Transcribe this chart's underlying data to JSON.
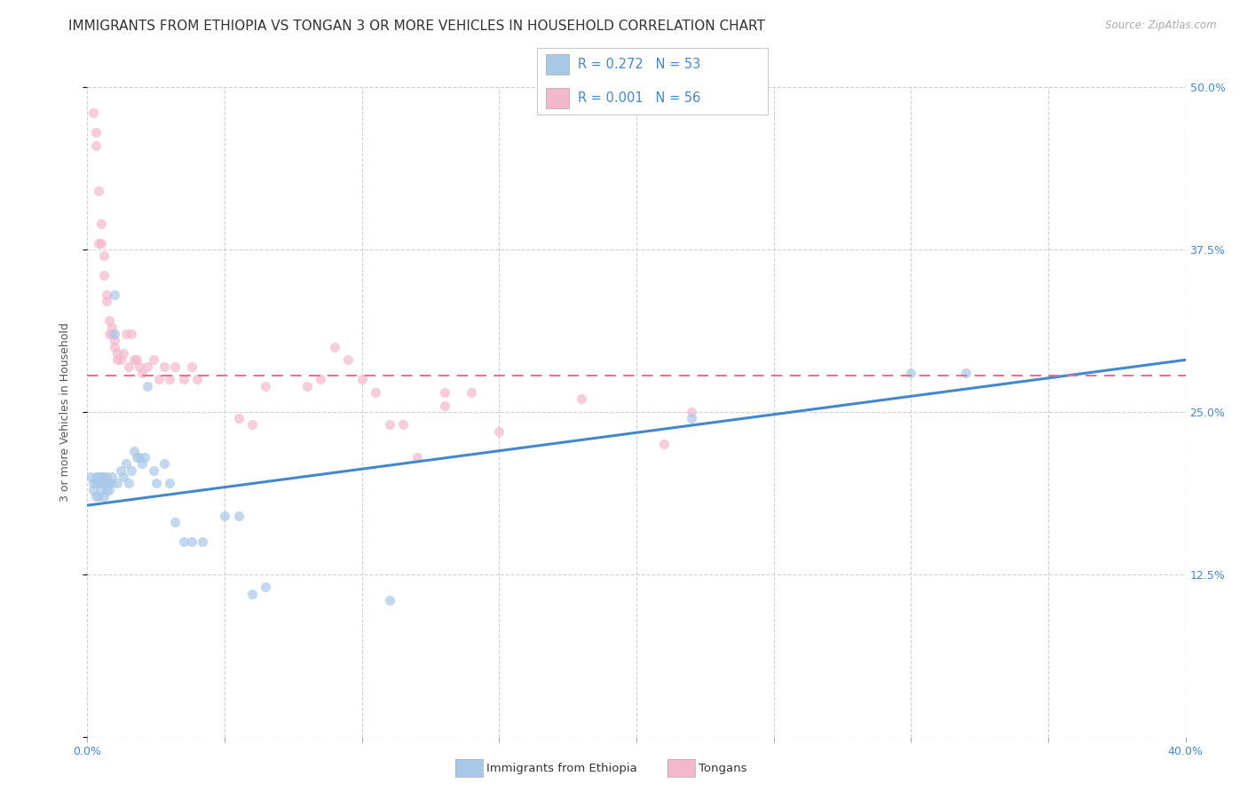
{
  "title": "IMMIGRANTS FROM ETHIOPIA VS TONGAN 3 OR MORE VEHICLES IN HOUSEHOLD CORRELATION CHART",
  "source": "Source: ZipAtlas.com",
  "ylabel": "3 or more Vehicles in Household",
  "x_min": 0.0,
  "x_max": 0.4,
  "y_min": 0.0,
  "y_max": 0.5,
  "y_ticks": [
    0.0,
    0.125,
    0.25,
    0.375,
    0.5
  ],
  "y_tick_labels": [
    "",
    "12.5%",
    "25.0%",
    "37.5%",
    "50.0%"
  ],
  "x_ticks": [
    0.0,
    0.05,
    0.1,
    0.15,
    0.2,
    0.25,
    0.3,
    0.35,
    0.4
  ],
  "color_blue": "#a8c8e8",
  "color_pink": "#f4b8cc",
  "color_line_blue": "#4488cc",
  "color_line_pink": "#e87090",
  "legend_label1": "Immigrants from Ethiopia",
  "legend_label2": "Tongans",
  "blue_x": [
    0.001,
    0.002,
    0.002,
    0.003,
    0.003,
    0.003,
    0.004,
    0.004,
    0.004,
    0.005,
    0.005,
    0.005,
    0.005,
    0.006,
    0.006,
    0.006,
    0.007,
    0.007,
    0.007,
    0.008,
    0.008,
    0.009,
    0.009,
    0.01,
    0.01,
    0.011,
    0.012,
    0.013,
    0.014,
    0.015,
    0.016,
    0.017,
    0.018,
    0.019,
    0.02,
    0.021,
    0.022,
    0.024,
    0.025,
    0.028,
    0.03,
    0.032,
    0.035,
    0.038,
    0.042,
    0.05,
    0.055,
    0.06,
    0.065,
    0.22,
    0.3,
    0.32,
    0.11
  ],
  "blue_y": [
    0.2,
    0.195,
    0.19,
    0.185,
    0.195,
    0.2,
    0.2,
    0.195,
    0.185,
    0.2,
    0.2,
    0.195,
    0.19,
    0.2,
    0.195,
    0.185,
    0.2,
    0.195,
    0.19,
    0.195,
    0.19,
    0.2,
    0.195,
    0.34,
    0.31,
    0.195,
    0.205,
    0.2,
    0.21,
    0.195,
    0.205,
    0.22,
    0.215,
    0.215,
    0.21,
    0.215,
    0.27,
    0.205,
    0.195,
    0.21,
    0.195,
    0.165,
    0.15,
    0.15,
    0.15,
    0.17,
    0.17,
    0.11,
    0.115,
    0.245,
    0.28,
    0.28,
    0.105
  ],
  "pink_x": [
    0.002,
    0.003,
    0.003,
    0.004,
    0.004,
    0.005,
    0.005,
    0.006,
    0.006,
    0.007,
    0.007,
    0.008,
    0.008,
    0.009,
    0.009,
    0.01,
    0.01,
    0.011,
    0.011,
    0.012,
    0.013,
    0.014,
    0.015,
    0.016,
    0.017,
    0.018,
    0.019,
    0.02,
    0.022,
    0.024,
    0.026,
    0.028,
    0.03,
    0.032,
    0.035,
    0.038,
    0.04,
    0.055,
    0.06,
    0.065,
    0.08,
    0.085,
    0.09,
    0.095,
    0.1,
    0.105,
    0.11,
    0.115,
    0.12,
    0.13,
    0.14,
    0.15,
    0.18,
    0.21,
    0.22,
    0.13
  ],
  "pink_y": [
    0.48,
    0.465,
    0.455,
    0.42,
    0.38,
    0.38,
    0.395,
    0.355,
    0.37,
    0.34,
    0.335,
    0.32,
    0.31,
    0.31,
    0.315,
    0.305,
    0.3,
    0.295,
    0.29,
    0.29,
    0.295,
    0.31,
    0.285,
    0.31,
    0.29,
    0.29,
    0.285,
    0.28,
    0.285,
    0.29,
    0.275,
    0.285,
    0.275,
    0.285,
    0.275,
    0.285,
    0.275,
    0.245,
    0.24,
    0.27,
    0.27,
    0.275,
    0.3,
    0.29,
    0.275,
    0.265,
    0.24,
    0.24,
    0.215,
    0.255,
    0.265,
    0.235,
    0.26,
    0.225,
    0.25,
    0.265
  ],
  "blue_trend_x": [
    0.0,
    0.4
  ],
  "blue_trend_y": [
    0.178,
    0.29
  ],
  "pink_trend_x": [
    0.0,
    0.4
  ],
  "pink_trend_y": [
    0.278,
    0.278
  ],
  "background_color": "#ffffff",
  "grid_color": "#d0d0d0",
  "title_fontsize": 11,
  "axis_label_fontsize": 9,
  "tick_fontsize": 9,
  "marker_size": 65
}
